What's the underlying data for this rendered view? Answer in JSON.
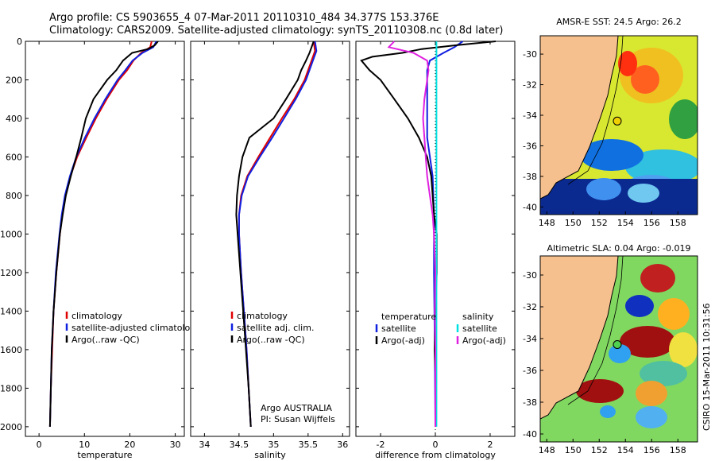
{
  "header": {
    "line1": "Argo profile: CS 5903655_4 07-Mar-2011 20110310_484 34.377S 153.376E",
    "line2": "Climatology: CARS2009. Satellite-adjusted climatology: synTS_20110308.nc (0.8d later)"
  },
  "footer_note": "CSIRO 15-Mar-2011 10:31:56",
  "colors": {
    "climatology": "#e00000",
    "satellite": "#1020e0",
    "argo": "#000000",
    "sat_salinity": "#00e0e0",
    "argo_salinity": "#e020e0",
    "land": "#f6c08e"
  },
  "chart_data": [
    {
      "id": "temperature",
      "type": "line",
      "xlabel": "temperature",
      "ylabel": "",
      "xlim": [
        -3,
        32
      ],
      "ylim": [
        2050,
        0
      ],
      "xticks": [
        "0",
        "10",
        "20",
        "30"
      ],
      "xtick_values": [
        0,
        10,
        20,
        30
      ],
      "yticks": [
        "0",
        "200",
        "400",
        "600",
        "800",
        "1000",
        "1200",
        "1400",
        "1600",
        "1800",
        "2000"
      ],
      "ytick_values": [
        0,
        200,
        400,
        600,
        800,
        1000,
        1200,
        1400,
        1600,
        1800,
        2000
      ],
      "legend": [
        "climatology",
        "satellite-adjusted climatology",
        "Argo(..raw -QC)"
      ],
      "series": [
        {
          "name": "climatology",
          "color": "#e00000",
          "depth": [
            0,
            30,
            60,
            100,
            150,
            200,
            300,
            400,
            500,
            600,
            700,
            800,
            900,
            1000,
            1200,
            1400,
            1600,
            1800,
            2000
          ],
          "values": [
            24.8,
            24.5,
            22.5,
            20.8,
            19.4,
            17.6,
            14.9,
            12.5,
            10.4,
            8.4,
            6.9,
            5.8,
            5.1,
            4.6,
            3.8,
            3.2,
            2.9,
            2.6,
            2.4
          ]
        },
        {
          "name": "satellite-adjusted climatology",
          "color": "#1020e0",
          "depth": [
            0,
            30,
            60,
            100,
            150,
            200,
            300,
            400,
            500,
            600,
            700,
            800,
            900,
            1000,
            1200,
            1400,
            1600,
            1800,
            2000
          ],
          "values": [
            25.8,
            25.2,
            22.8,
            20.6,
            19.0,
            17.3,
            14.6,
            12.2,
            10.1,
            8.2,
            6.8,
            5.7,
            5.0,
            4.5,
            3.7,
            3.2,
            2.8,
            2.6,
            2.4
          ]
        },
        {
          "name": "Argo(..raw -QC)",
          "color": "#000000",
          "depth": [
            0,
            20,
            40,
            60,
            100,
            150,
            200,
            300,
            400,
            500,
            600,
            700,
            800,
            900,
            1000,
            1200,
            1400,
            1600,
            1800,
            2000
          ],
          "values": [
            26.2,
            25.5,
            24.0,
            20.5,
            18.5,
            17.0,
            15.0,
            12.0,
            10.3,
            9.3,
            8.2,
            7.0,
            5.9,
            5.2,
            4.6,
            3.8,
            3.2,
            2.8,
            2.6,
            2.4
          ]
        }
      ]
    },
    {
      "id": "salinity",
      "type": "line",
      "xlabel": "salinity",
      "xlim": [
        33.8,
        36.1
      ],
      "ylim": [
        2050,
        0
      ],
      "xticks": [
        "34",
        "34.5",
        "35",
        "35.5",
        "36"
      ],
      "xtick_values": [
        34,
        34.5,
        35,
        35.5,
        36
      ],
      "legend": [
        "climatology",
        "satellite adj. clim.",
        "Argo(..raw -QC)"
      ],
      "annotations": [
        "Argo AUSTRALIA",
        "PI: Susan Wijffels"
      ],
      "series": [
        {
          "name": "climatology",
          "color": "#e00000",
          "depth": [
            0,
            50,
            100,
            200,
            300,
            400,
            500,
            600,
            700,
            800,
            900,
            1000,
            1200,
            1400,
            1600,
            1800,
            2000
          ],
          "values": [
            35.58,
            35.6,
            35.55,
            35.45,
            35.3,
            35.12,
            34.95,
            34.78,
            34.62,
            34.53,
            34.5,
            34.5,
            34.53,
            34.57,
            34.61,
            34.64,
            34.67
          ]
        },
        {
          "name": "satellite adj. clim.",
          "color": "#1020e0",
          "depth": [
            0,
            50,
            100,
            200,
            300,
            400,
            500,
            600,
            700,
            800,
            900,
            1000,
            1200,
            1400,
            1600,
            1800,
            2000
          ],
          "values": [
            35.6,
            35.62,
            35.57,
            35.47,
            35.32,
            35.15,
            34.98,
            34.8,
            34.63,
            34.54,
            34.5,
            34.5,
            34.53,
            34.57,
            34.61,
            34.64,
            34.67
          ]
        },
        {
          "name": "Argo(..raw -QC)",
          "color": "#000000",
          "depth": [
            0,
            30,
            60,
            100,
            150,
            200,
            300,
            400,
            500,
            600,
            700,
            800,
            900,
            1000,
            1200,
            1400,
            1600,
            1800,
            2000
          ],
          "values": [
            35.58,
            35.55,
            35.52,
            35.47,
            35.4,
            35.35,
            35.18,
            35.0,
            34.65,
            34.55,
            34.5,
            34.47,
            34.46,
            34.48,
            34.52,
            34.56,
            34.6,
            34.64,
            34.67
          ]
        }
      ]
    },
    {
      "id": "difference",
      "type": "line",
      "xlabel": "difference from climatology",
      "xlim": [
        -2.9,
        2.9
      ],
      "ylim": [
        2050,
        0
      ],
      "xticks": [
        "-2",
        "0",
        "2"
      ],
      "xtick_values": [
        -2,
        0,
        2
      ],
      "legend_headers": [
        "temperature",
        "salinity"
      ],
      "legend": [
        "satellite",
        "Argo(-adj)",
        "satellite",
        "Argo(-adj)"
      ],
      "series": [
        {
          "name": "temperature satellite",
          "color": "#1020e0",
          "depth": [
            0,
            30,
            60,
            100,
            150,
            200,
            300,
            400,
            500,
            700,
            900,
            1200,
            1600,
            2000
          ],
          "values": [
            1.0,
            0.7,
            0.3,
            -0.2,
            -0.3,
            -0.3,
            -0.3,
            -0.3,
            -0.3,
            -0.1,
            -0.05,
            -0.05,
            -0.02,
            0.0
          ]
        },
        {
          "name": "temperature Argo(-adj)",
          "color": "#000000",
          "depth": [
            0,
            20,
            40,
            60,
            80,
            100,
            150,
            200,
            300,
            400,
            500,
            600,
            700,
            800,
            900,
            1000,
            1200,
            1400,
            1600,
            1800,
            2000
          ],
          "values": [
            2.2,
            0.8,
            -0.5,
            -1.2,
            -2.3,
            -2.7,
            -2.4,
            -2.0,
            -1.5,
            -1.0,
            -0.6,
            -0.3,
            -0.15,
            -0.1,
            -0.05,
            0.05,
            0.05,
            0.0,
            -0.03,
            0.02,
            0.0
          ]
        },
        {
          "name": "salinity satellite",
          "color": "#00e0e0",
          "depth": [
            0,
            2000
          ],
          "values": [
            0.04,
            0.04
          ]
        },
        {
          "name": "salinity Argo(-adj)",
          "color": "#e020e0",
          "depth": [
            0,
            30,
            60,
            100,
            150,
            200,
            300,
            400,
            500,
            600,
            700,
            800,
            900,
            1000,
            1200,
            1400,
            1600,
            2000
          ],
          "values": [
            -1.5,
            -1.7,
            -0.8,
            -0.3,
            -0.25,
            -0.3,
            -0.4,
            -0.45,
            -0.4,
            -0.35,
            -0.3,
            -0.2,
            -0.1,
            -0.05,
            0.0,
            -0.02,
            0.0,
            0.0
          ]
        }
      ]
    },
    {
      "id": "sst_map",
      "type": "heatmap",
      "title": "AMSR-E SST: 24.5 Argo: 26.2",
      "xlim": [
        147.5,
        159.5
      ],
      "ylim": [
        -40.5,
        -28.8
      ],
      "xticks": [
        "148",
        "150",
        "152",
        "154",
        "156",
        "158"
      ],
      "xtick_values": [
        148,
        150,
        152,
        154,
        156,
        158
      ],
      "yticks": [
        "-30",
        "-32",
        "-34",
        "-36",
        "-38",
        "-40"
      ],
      "ytick_values": [
        -30,
        -32,
        -34,
        -36,
        -38,
        -40
      ],
      "marker": {
        "lon": 153.376,
        "lat": -34.377
      }
    },
    {
      "id": "sla_map",
      "type": "heatmap",
      "title": "Altimetric SLA: 0.04 Argo: -0.019",
      "xlim": [
        147.5,
        159.5
      ],
      "ylim": [
        -40.5,
        -28.8
      ],
      "xticks": [
        "148",
        "150",
        "152",
        "154",
        "156",
        "158"
      ],
      "xtick_values": [
        148,
        150,
        152,
        154,
        156,
        158
      ],
      "yticks": [
        "-30",
        "-32",
        "-34",
        "-36",
        "-38",
        "-40"
      ],
      "ytick_values": [
        -30,
        -32,
        -34,
        -36,
        -38,
        -40
      ],
      "marker": {
        "lon": 153.376,
        "lat": -34.377
      }
    }
  ]
}
